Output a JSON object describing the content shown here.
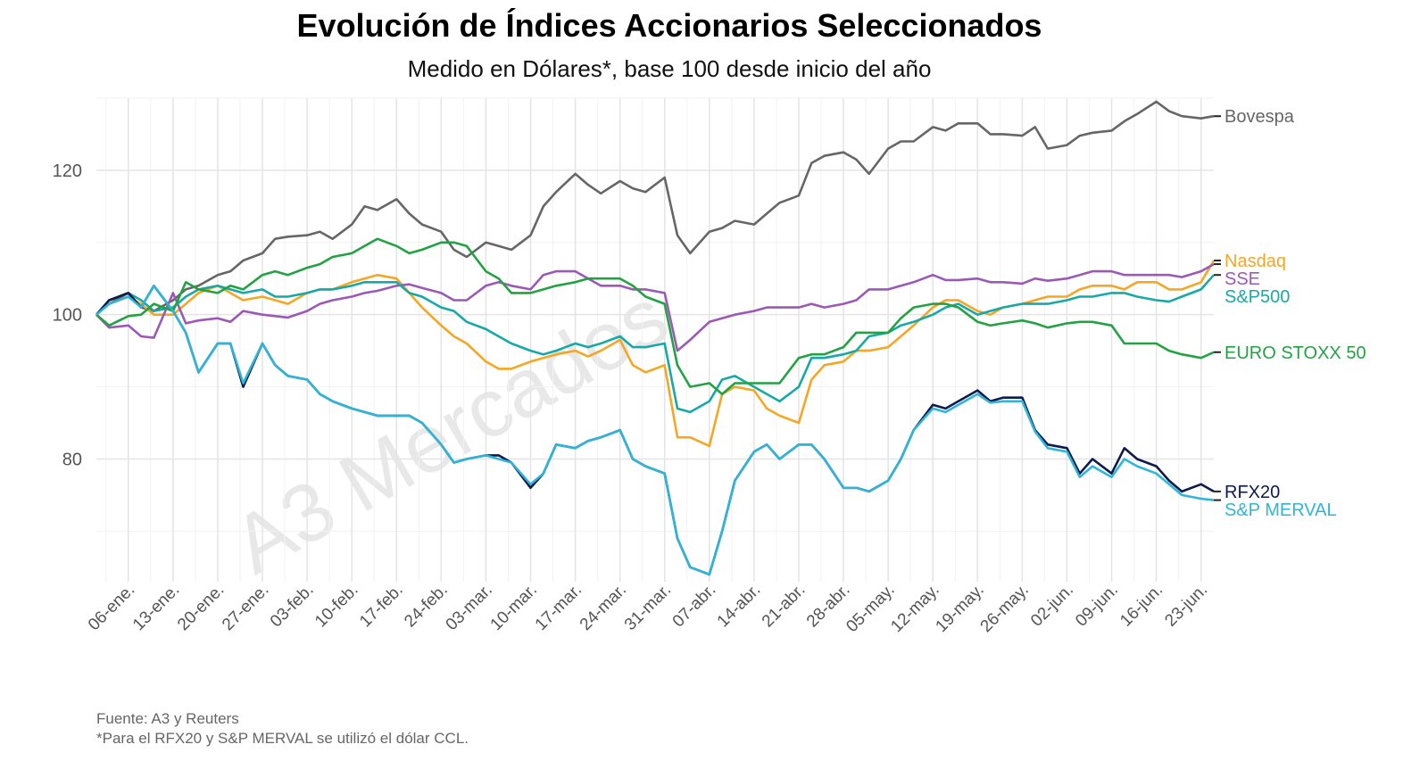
{
  "chart_data": {
    "type": "line",
    "title": "Evolución de Índices Accionarios Seleccionados",
    "subtitle": "Medido en Dólares*, base 100 desde inicio del año",
    "xlabel": "",
    "ylabel": "",
    "ylim": [
      63,
      130
    ],
    "xlim": [
      "2025-01-01",
      "2025-06-25"
    ],
    "grid": true,
    "legend": "end-of-line labels, right",
    "watermark": "A3 Mercados",
    "yticks": [
      80,
      100,
      120
    ],
    "xticks": [
      {
        "date": "2025-01-06",
        "label": "06-ene."
      },
      {
        "date": "2025-01-13",
        "label": "13-ene."
      },
      {
        "date": "2025-01-20",
        "label": "20-ene."
      },
      {
        "date": "2025-01-27",
        "label": "27-ene."
      },
      {
        "date": "2025-02-03",
        "label": "03-feb."
      },
      {
        "date": "2025-02-10",
        "label": "10-feb."
      },
      {
        "date": "2025-02-17",
        "label": "17-feb."
      },
      {
        "date": "2025-02-24",
        "label": "24-feb."
      },
      {
        "date": "2025-03-03",
        "label": "03-mar."
      },
      {
        "date": "2025-03-10",
        "label": "10-mar."
      },
      {
        "date": "2025-03-17",
        "label": "17-mar."
      },
      {
        "date": "2025-03-24",
        "label": "24-mar."
      },
      {
        "date": "2025-03-31",
        "label": "31-mar."
      },
      {
        "date": "2025-04-07",
        "label": "07-abr."
      },
      {
        "date": "2025-04-14",
        "label": "14-abr."
      },
      {
        "date": "2025-04-21",
        "label": "21-abr."
      },
      {
        "date": "2025-04-28",
        "label": "28-abr."
      },
      {
        "date": "2025-05-05",
        "label": "05-may."
      },
      {
        "date": "2025-05-12",
        "label": "12-may."
      },
      {
        "date": "2025-05-19",
        "label": "19-may."
      },
      {
        "date": "2025-05-26",
        "label": "26-may."
      },
      {
        "date": "2025-06-02",
        "label": "02-jun."
      },
      {
        "date": "2025-06-09",
        "label": "09-jun."
      },
      {
        "date": "2025-06-16",
        "label": "16-jun."
      },
      {
        "date": "2025-06-23",
        "label": "23-jun."
      }
    ],
    "x": [
      "2025-01-01",
      "2025-01-03",
      "2025-01-06",
      "2025-01-08",
      "2025-01-10",
      "2025-01-13",
      "2025-01-15",
      "2025-01-17",
      "2025-01-20",
      "2025-01-22",
      "2025-01-24",
      "2025-01-27",
      "2025-01-29",
      "2025-01-31",
      "2025-02-03",
      "2025-02-05",
      "2025-02-07",
      "2025-02-10",
      "2025-02-12",
      "2025-02-14",
      "2025-02-17",
      "2025-02-19",
      "2025-02-21",
      "2025-02-24",
      "2025-02-26",
      "2025-02-28",
      "2025-03-03",
      "2025-03-05",
      "2025-03-07",
      "2025-03-10",
      "2025-03-12",
      "2025-03-14",
      "2025-03-17",
      "2025-03-19",
      "2025-03-21",
      "2025-03-24",
      "2025-03-26",
      "2025-03-28",
      "2025-03-31",
      "2025-04-02",
      "2025-04-04",
      "2025-04-07",
      "2025-04-09",
      "2025-04-11",
      "2025-04-14",
      "2025-04-16",
      "2025-04-18",
      "2025-04-21",
      "2025-04-23",
      "2025-04-25",
      "2025-04-28",
      "2025-04-30",
      "2025-05-02",
      "2025-05-05",
      "2025-05-07",
      "2025-05-09",
      "2025-05-12",
      "2025-05-14",
      "2025-05-16",
      "2025-05-19",
      "2025-05-21",
      "2025-05-23",
      "2025-05-26",
      "2025-05-28",
      "2025-05-30",
      "2025-06-02",
      "2025-06-04",
      "2025-06-06",
      "2025-06-09",
      "2025-06-11",
      "2025-06-13",
      "2025-06-16",
      "2025-06-18",
      "2025-06-20",
      "2025-06-23",
      "2025-06-25"
    ],
    "series": [
      {
        "name": "Bovespa",
        "color": "#666666",
        "values": [
          100,
          101.5,
          103,
          101,
          100.5,
          102,
          103.5,
          104,
          105.5,
          106,
          107.5,
          108.5,
          110.5,
          110.8,
          111,
          111.5,
          110.5,
          112.5,
          115,
          114.5,
          116,
          114,
          112.5,
          111.5,
          109,
          108,
          110,
          109.5,
          109,
          111,
          115,
          117,
          119.5,
          118,
          116.8,
          118.5,
          117.5,
          117,
          119,
          111,
          108.5,
          111.5,
          112,
          113,
          112.5,
          114,
          115.5,
          116.5,
          121,
          122,
          122.5,
          121.5,
          119.5,
          123,
          124,
          124,
          126,
          125.5,
          126.5,
          126.5,
          125,
          125,
          124.8,
          126,
          123,
          123.5,
          124.8,
          125.2,
          125.5,
          126.8,
          127.8,
          129.5,
          128.2,
          127.5,
          127.2,
          127.5
        ]
      },
      {
        "name": "Nasdaq",
        "color": "#F5A623",
        "values": [
          100,
          101.5,
          102.5,
          101.5,
          100,
          100,
          101.5,
          103,
          104,
          103,
          102,
          102.5,
          102,
          101.5,
          103,
          103.5,
          103.5,
          104.5,
          105,
          105.5,
          105,
          103,
          101,
          98.5,
          97,
          96,
          93.5,
          92.5,
          92.5,
          93.5,
          94,
          94.5,
          95,
          94.2,
          95,
          96.5,
          93,
          92,
          93,
          83,
          83,
          81.8,
          89,
          90,
          89.5,
          87,
          86,
          85,
          91,
          93,
          93.5,
          95,
          95,
          95.5,
          97,
          98.5,
          101,
          102,
          102,
          100.5,
          100,
          101,
          101.5,
          102,
          102.5,
          102.5,
          103.5,
          104,
          104,
          103.5,
          104.5,
          104.5,
          103.5,
          103.5,
          104.5,
          107.5
        ]
      },
      {
        "name": "SSE",
        "color": "#9B59B6",
        "values": [
          100,
          98.2,
          98.5,
          97,
          96.8,
          103,
          98.8,
          99.2,
          99.5,
          99,
          100.5,
          100,
          99.8,
          99.6,
          100.5,
          101.5,
          102,
          102.5,
          103,
          103.3,
          104,
          104.2,
          103.7,
          103,
          102,
          102,
          104,
          104.5,
          104,
          103.5,
          105.5,
          106,
          106,
          105,
          104,
          104,
          103.5,
          103.5,
          103,
          95,
          96.5,
          99,
          99.5,
          100,
          100.5,
          101,
          101,
          101,
          101.5,
          101,
          101.5,
          102,
          103.5,
          103.5,
          104,
          104.5,
          105.5,
          104.8,
          104.8,
          105,
          104.5,
          104.5,
          104.3,
          105,
          104.7,
          105,
          105.5,
          106,
          106,
          105.5,
          105.5,
          105.5,
          105.5,
          105.2,
          106,
          107
        ]
      },
      {
        "name": "S&P500",
        "color": "#17A9A6",
        "values": [
          100,
          102,
          103,
          102,
          100.5,
          101,
          102.5,
          103.5,
          104,
          103.5,
          103,
          103.5,
          102.5,
          102.5,
          103,
          103.5,
          103.5,
          104,
          104.5,
          104.5,
          104.5,
          103,
          102.5,
          101,
          100.5,
          99,
          98,
          97,
          96,
          95,
          94.5,
          95,
          96,
          95.5,
          96,
          97,
          95.5,
          95.5,
          96,
          87,
          86.5,
          88,
          91,
          91.5,
          90,
          89,
          88,
          90,
          94,
          94,
          94.5,
          95,
          97,
          97.5,
          98.5,
          99,
          100,
          101,
          101.5,
          100,
          100.5,
          101,
          101.5,
          101.5,
          101.5,
          102,
          102.5,
          102.5,
          103,
          103,
          102.5,
          102,
          101.8,
          102.5,
          103.5,
          105.5
        ]
      },
      {
        "name": "EURO STOXX 50",
        "color": "#22A243",
        "values": [
          100,
          98.5,
          99.8,
          100,
          101.5,
          100.5,
          104.5,
          103.5,
          103,
          104,
          103.5,
          105.5,
          106,
          105.5,
          106.5,
          107,
          108,
          108.5,
          109.5,
          110.5,
          109.5,
          108.5,
          109,
          110,
          110,
          109.5,
          106,
          105,
          103,
          103,
          103.5,
          104,
          104.5,
          105,
          105,
          105,
          104,
          102.5,
          101.5,
          93,
          90,
          90.5,
          89,
          90.5,
          90.5,
          90.5,
          90.5,
          94,
          94.5,
          94.5,
          95.5,
          97.5,
          97.5,
          97.5,
          99.5,
          101,
          101.5,
          101.5,
          101,
          99,
          98.5,
          98.8,
          99.2,
          98.8,
          98.2,
          98.8,
          99,
          99,
          98.5,
          96,
          96,
          96,
          95,
          94.5,
          94,
          94.8
        ]
      },
      {
        "name": "RFX20",
        "color": "#0F1B4C",
        "values": [
          100,
          102,
          103,
          101,
          104,
          100.5,
          97.5,
          92,
          96,
          96,
          90,
          96,
          93,
          91.5,
          91,
          89,
          88,
          87,
          86.5,
          86,
          86,
          86,
          85,
          82,
          79.5,
          80,
          80.5,
          80.5,
          79.5,
          76,
          78,
          82,
          81.5,
          82.5,
          83,
          84,
          80,
          79,
          78,
          69,
          65,
          64,
          70,
          77,
          81,
          82,
          80,
          82,
          82,
          80,
          76,
          76,
          75.5,
          77,
          80,
          84,
          87.5,
          87,
          88,
          89.5,
          88,
          88.5,
          88.5,
          84,
          82,
          81.5,
          78,
          80,
          78,
          81.5,
          80,
          79,
          77,
          75.5,
          76.5,
          75.5
        ]
      },
      {
        "name": "S&P MERVAL",
        "color": "#2FB5D8",
        "values": [
          100,
          101.5,
          102.5,
          101,
          104,
          100.5,
          97.5,
          92,
          96,
          96,
          90.5,
          96,
          93,
          91.5,
          91,
          89,
          88,
          87,
          86.5,
          86,
          86,
          86,
          85,
          82,
          79.5,
          80,
          80.5,
          80,
          79.5,
          76.5,
          78,
          82,
          81.5,
          82.5,
          83,
          84,
          80,
          79,
          78,
          69,
          65,
          64,
          70,
          77,
          81,
          82,
          80,
          82,
          82,
          80,
          76,
          76,
          75.5,
          77,
          80,
          84,
          87,
          86.5,
          87.5,
          89,
          87.8,
          88,
          88,
          83.8,
          81.5,
          81,
          77.5,
          79,
          77.5,
          80,
          79,
          78,
          76.5,
          75,
          74.5,
          74.3
        ]
      }
    ]
  },
  "source": "Fuente: A3 y Reuters",
  "footnote": "*Para el RFX20 y S&P MERVAL se utilizó el dólar CCL."
}
